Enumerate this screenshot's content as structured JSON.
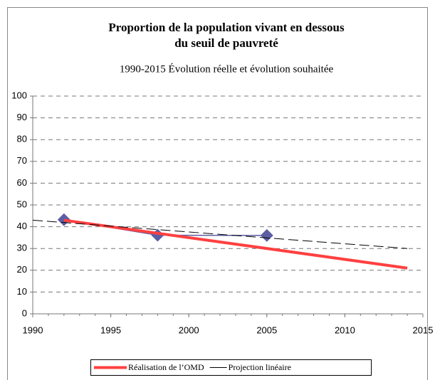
{
  "chart_data": {
    "type": "line",
    "title": [
      "Proportion de la population vivant en dessous",
      "du seuil de pauvreté"
    ],
    "subtitle": "1990-2015 Évolution réelle et évolution souhaitée",
    "xlim": [
      1990,
      2015
    ],
    "xticks": [
      1990,
      1995,
      2000,
      2005,
      2010,
      2015
    ],
    "ylim": [
      0,
      100
    ],
    "yticks": [
      0,
      10,
      20,
      30,
      40,
      50,
      60,
      70,
      80,
      90,
      100
    ],
    "grid": true,
    "legend": "bottom",
    "series": [
      {
        "color": "#5c5ea3",
        "marker": "diamond",
        "x": [
          1992,
          1998,
          2005
        ],
        "values": [
          43.2,
          36.1,
          36.0
        ]
      },
      {
        "name": "Réalisation de l’OMD",
        "color": "#ff4040",
        "x": [
          1992,
          2014
        ],
        "values": [
          43,
          21
        ]
      },
      {
        "name": "Projection linéaire",
        "color": "#000000",
        "dashed": true,
        "x": [
          1990,
          2014
        ],
        "values": [
          43,
          30
        ]
      }
    ]
  }
}
